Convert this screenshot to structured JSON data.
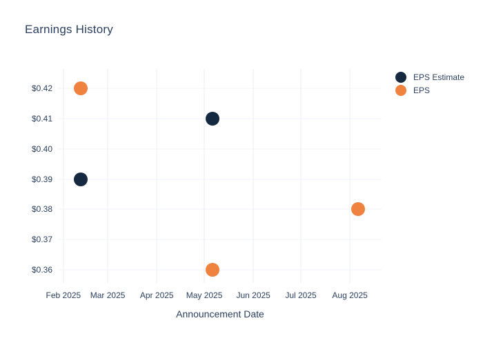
{
  "title": "Earnings History",
  "x_axis_title": "Announcement Date",
  "colors": {
    "background": "#ffffff",
    "text": "#2a3f5f",
    "grid_vertical": "#e9edf6",
    "grid_horizontal": "#f0f3f9",
    "eps_estimate": "#152940",
    "eps": "#f0823f"
  },
  "legend": {
    "position": "top-right",
    "items": [
      {
        "label": "EPS Estimate",
        "color": "#152940"
      },
      {
        "label": "EPS",
        "color": "#f0823f"
      }
    ]
  },
  "chart_data": {
    "type": "scatter",
    "title": "Earnings History",
    "xlabel": "Announcement Date",
    "ylabel": "",
    "grid": true,
    "legend_position": "top-right",
    "x_ticks": [
      {
        "label": "Feb 2025",
        "day": 32
      },
      {
        "label": "Mar 2025",
        "day": 60
      },
      {
        "label": "Apr 2025",
        "day": 91
      },
      {
        "label": "May 2025",
        "day": 121
      },
      {
        "label": "Jun 2025",
        "day": 152
      },
      {
        "label": "Jul 2025",
        "day": 182
      },
      {
        "label": "Aug 2025",
        "day": 213
      }
    ],
    "x_range_days": [
      29,
      233
    ],
    "y_ticks": [
      {
        "label": "$0.36",
        "value": 0.36
      },
      {
        "label": "$0.37",
        "value": 0.37
      },
      {
        "label": "$0.38",
        "value": 0.38
      },
      {
        "label": "$0.39",
        "value": 0.39
      },
      {
        "label": "$0.40",
        "value": 0.4
      },
      {
        "label": "$0.41",
        "value": 0.41
      },
      {
        "label": "$0.42",
        "value": 0.42
      }
    ],
    "y_range": [
      0.3557,
      0.4264
    ],
    "series": [
      {
        "name": "EPS Estimate",
        "color": "#152940",
        "points": [
          {
            "date": "2025-02-12",
            "day": 43,
            "value": 0.39,
            "label": "$0.39"
          },
          {
            "date": "2025-05-06",
            "day": 126,
            "value": 0.41,
            "label": "$0.41"
          }
        ]
      },
      {
        "name": "EPS",
        "color": "#f0823f",
        "points": [
          {
            "date": "2025-02-12",
            "day": 43,
            "value": 0.42,
            "label": "$0.42"
          },
          {
            "date": "2025-05-06",
            "day": 126,
            "value": 0.36,
            "label": "$0.36"
          },
          {
            "date": "2025-08-06",
            "day": 218,
            "value": 0.38,
            "label": "$0.38"
          }
        ]
      }
    ]
  }
}
